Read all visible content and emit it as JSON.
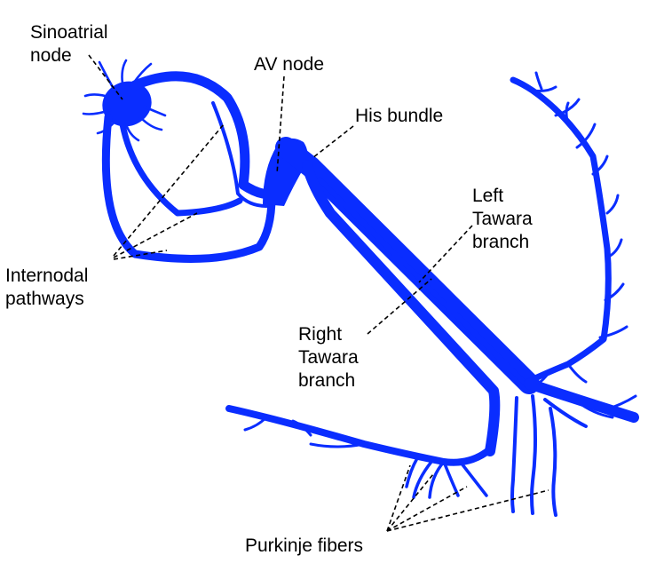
{
  "colors": {
    "conduction": "#0a2dff",
    "text": "#000000",
    "background": "#ffffff"
  },
  "labels": {
    "sinoatrial_node": [
      "Sinoatrial",
      "node"
    ],
    "av_node": "AV node",
    "his_bundle": "His bundle",
    "left_tawara_branch": [
      "Left",
      "Tawara",
      "branch"
    ],
    "internodal_pathways": [
      "Internodal",
      "pathways"
    ],
    "right_tawara_branch": [
      "Right",
      "Tawara",
      "branch"
    ],
    "purkinje_fibers": "Purkinje fibers"
  },
  "icons": {
    "conduction_system": "heart-conduction-system-icon"
  }
}
